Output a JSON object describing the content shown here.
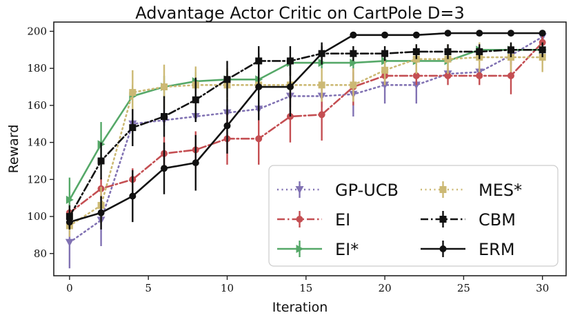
{
  "chart_data": {
    "type": "line",
    "title": "Advantage Actor Critic on CartPole D=3",
    "xlabel": "Iteration",
    "ylabel": "Reward",
    "xlim": [
      -1,
      31.5
    ],
    "ylim": [
      68,
      205
    ],
    "xticks": [
      0,
      5,
      10,
      15,
      20,
      25,
      30
    ],
    "yticks": [
      80,
      100,
      120,
      140,
      160,
      180,
      200
    ],
    "legend_location": "lower-right",
    "series": [
      {
        "name": "GP-UCB",
        "color": "#8172b3",
        "linestyle": "dotted",
        "marker": "triangle-down",
        "x": [
          0,
          2,
          4,
          6,
          8,
          10,
          12,
          14,
          16,
          18,
          20,
          22,
          24,
          26,
          28,
          30
        ],
        "y": [
          86,
          98,
          150,
          152,
          154,
          156,
          158,
          165,
          165,
          166,
          171,
          171,
          177,
          178,
          187,
          197
        ],
        "err": [
          14,
          14,
          3,
          3,
          3,
          4,
          4,
          6,
          6,
          12,
          10,
          10,
          3,
          3,
          5,
          3
        ]
      },
      {
        "name": "EI",
        "color": "#c44e52",
        "linestyle": "dashdot",
        "marker": "circle",
        "x": [
          0,
          2,
          4,
          6,
          8,
          10,
          12,
          14,
          16,
          18,
          20,
          22,
          24,
          26,
          28,
          30
        ],
        "y": [
          102,
          115,
          120,
          134,
          136,
          142,
          142,
          154,
          155,
          170,
          176,
          176,
          176,
          176,
          176,
          194
        ],
        "err": [
          5,
          6,
          6,
          9,
          10,
          14,
          14,
          14,
          14,
          10,
          5,
          5,
          5,
          5,
          10,
          5
        ]
      },
      {
        "name": "EI*",
        "color": "#55a868",
        "linestyle": "solid",
        "marker": "triangle-right",
        "x": [
          0,
          2,
          4,
          6,
          8,
          10,
          12,
          14,
          16,
          18,
          20,
          22,
          24,
          26,
          28,
          30
        ],
        "y": [
          109,
          139,
          165,
          170,
          173,
          174,
          174,
          183,
          183,
          183,
          184,
          184,
          184,
          190,
          190,
          190
        ],
        "err": [
          12,
          12,
          6,
          6,
          5,
          5,
          5,
          3,
          3,
          3,
          3,
          3,
          3,
          3,
          3,
          3
        ]
      },
      {
        "name": "MES*",
        "color": "#ccb974",
        "linestyle": "dotted",
        "marker": "square",
        "x": [
          0,
          2,
          4,
          6,
          8,
          10,
          12,
          14,
          16,
          18,
          20,
          22,
          24,
          26,
          28,
          30
        ],
        "y": [
          95,
          106,
          167,
          170,
          171,
          171,
          171,
          171,
          171,
          171,
          179,
          185,
          185,
          186,
          186,
          186
        ],
        "err": [
          6,
          10,
          12,
          12,
          10,
          9,
          9,
          9,
          9,
          9,
          8,
          8,
          8,
          8,
          8,
          8
        ]
      },
      {
        "name": "CBM",
        "color": "#111111",
        "linestyle": "dashdot",
        "marker": "square",
        "x": [
          0,
          2,
          4,
          6,
          8,
          10,
          12,
          14,
          16,
          18,
          20,
          22,
          24,
          26,
          28,
          30
        ],
        "y": [
          100,
          130,
          148,
          154,
          163,
          174,
          184,
          184,
          188,
          188,
          188,
          189,
          189,
          189,
          190,
          190
        ],
        "err": [
          6,
          10,
          10,
          11,
          12,
          10,
          8,
          8,
          4,
          4,
          4,
          4,
          4,
          4,
          4,
          4
        ]
      },
      {
        "name": "ERM",
        "color": "#111111",
        "linestyle": "solid",
        "marker": "circle",
        "x": [
          0,
          2,
          4,
          6,
          8,
          10,
          12,
          14,
          16,
          18,
          20,
          22,
          24,
          26,
          28,
          30
        ],
        "y": [
          97,
          102,
          111,
          126,
          129,
          149,
          170,
          170,
          188,
          198,
          198,
          198,
          199,
          199,
          199,
          199
        ],
        "err": [
          4,
          9,
          14,
          14,
          15,
          15,
          18,
          16,
          6,
          1,
          1,
          1,
          1,
          1,
          1,
          1
        ]
      }
    ]
  }
}
